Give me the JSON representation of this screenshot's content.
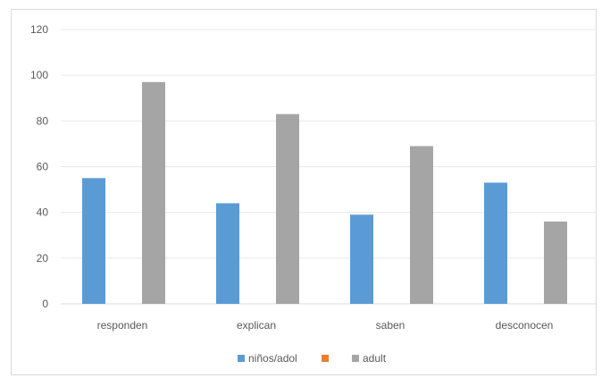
{
  "chart_data": {
    "type": "bar",
    "categories": [
      "responden",
      "explican",
      "saben",
      "desconocen"
    ],
    "series": [
      {
        "name": "niños/adol",
        "color": "#5b9bd5",
        "values": [
          55,
          44,
          39,
          53
        ]
      },
      {
        "name": "",
        "color": "#ed7d31",
        "values": [
          0,
          0,
          0,
          0
        ]
      },
      {
        "name": "adult",
        "color": "#a5a5a5",
        "values": [
          97,
          83,
          69,
          36
        ]
      }
    ],
    "legend_labels": [
      "niños/adol",
      "",
      "adult"
    ],
    "ylim": [
      0,
      120
    ],
    "yticks": [
      "0",
      "20",
      "40",
      "60",
      "80",
      "100",
      "120"
    ],
    "grid": true,
    "legend_position": "bottom",
    "title": "",
    "xlabel": "",
    "ylabel": ""
  }
}
